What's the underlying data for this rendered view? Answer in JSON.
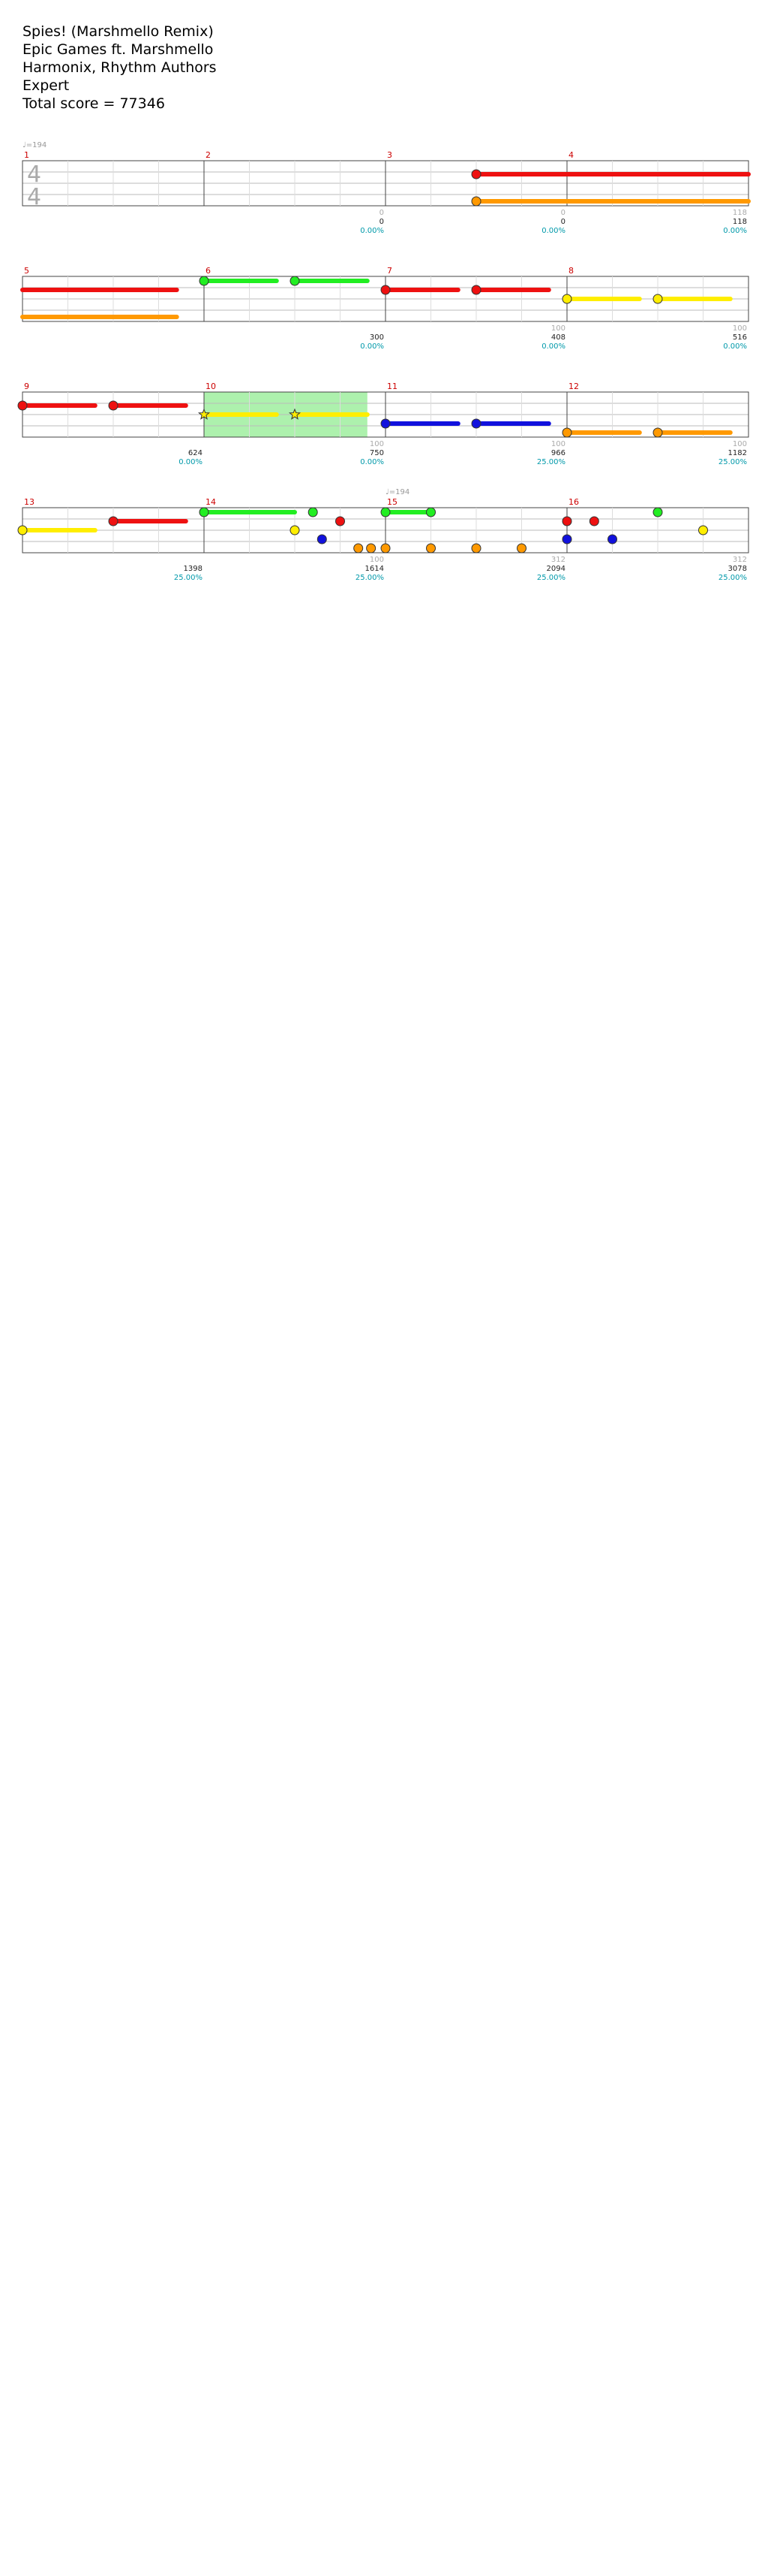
{
  "song": {
    "title": "Spies! (Marshmello Remix)",
    "artist": "Epic Games ft. Marshmello",
    "charter": "Harmonix, Rhythm Authors",
    "difficulty": "Expert",
    "total_score": "Total score = 77346"
  },
  "time_signature": {
    "top": "4",
    "bottom": "4"
  },
  "colors": {
    "green": "#22ee22",
    "red": "#ee1111",
    "yellow": "#ffee00",
    "blue": "#1111dd",
    "orange": "#ff9900",
    "sp": "#33dd33",
    "solo": "#3333ee",
    "stat_teal": "#0099aa"
  },
  "legend_lanes": [
    "green",
    "red",
    "yellow",
    "blue",
    "orange"
  ],
  "rows": [
    {
      "bpm": [
        {
          "m": 0,
          "label": "♩=194"
        }
      ],
      "measures": [
        {
          "n": "1",
          "s": [
            "",
            "",
            "",
            ""
          ],
          "sp": [],
          "solo": [],
          "sust": [],
          "notes": []
        },
        {
          "n": "2",
          "s": [
            "0",
            "0",
            "0.00%",
            ""
          ],
          "sp": [],
          "solo": [],
          "sust": [],
          "notes": []
        },
        {
          "n": "3",
          "s": [
            "0",
            "0",
            "0.00%",
            ""
          ],
          "sp": [],
          "solo": [],
          "sust": [],
          "notes": [
            [
              0.5,
              "red"
            ],
            [
              0.5,
              "orange"
            ]
          ],
          "susts": [
            [
              0.5,
              1,
              "red"
            ],
            [
              0.5,
              1,
              "orange"
            ]
          ]
        },
        {
          "n": "4",
          "s": [
            "118",
            "118",
            "0.00%",
            ""
          ],
          "sp": [],
          "solo": [],
          "sust": [
            [
              0,
              1,
              "red"
            ],
            [
              0,
              1,
              "orange"
            ]
          ],
          "notes": []
        }
      ]
    },
    {
      "bpm": [],
      "measures": [
        {
          "n": "5",
          "s": [
            "",
            "",
            "",
            ""
          ],
          "sp": [],
          "solo": [],
          "sust": [
            [
              0,
              0.85,
              "red"
            ],
            [
              0,
              0.85,
              "orange"
            ]
          ],
          "notes": []
        },
        {
          "n": "6",
          "s": [
            "",
            "300",
            "0.00%",
            ""
          ],
          "sp": [],
          "solo": [],
          "sust": [
            [
              0,
              0.4,
              "green"
            ],
            [
              0.5,
              0.9,
              "green"
            ]
          ],
          "notes": [
            [
              0,
              "green"
            ],
            [
              0.5,
              "green"
            ]
          ]
        },
        {
          "n": "7",
          "s": [
            "100",
            "408",
            "0.00%",
            ""
          ],
          "sp": [],
          "solo": [],
          "sust": [
            [
              0,
              0.4,
              "red"
            ],
            [
              0.5,
              0.9,
              "red"
            ]
          ],
          "notes": [
            [
              0,
              "red"
            ],
            [
              0.5,
              "red"
            ]
          ]
        },
        {
          "n": "8",
          "s": [
            "100",
            "516",
            "0.00%",
            ""
          ],
          "sp": [],
          "solo": [],
          "sust": [
            [
              0,
              0.4,
              "yellow"
            ],
            [
              0.5,
              0.9,
              "yellow"
            ]
          ],
          "notes": [
            [
              0,
              "yellow"
            ],
            [
              0.5,
              "yellow"
            ]
          ]
        }
      ]
    },
    {
      "bpm": [],
      "measures": [
        {
          "n": "9",
          "s": [
            "",
            "624",
            "0.00%",
            ""
          ],
          "sp": [],
          "solo": [],
          "sust": [
            [
              0,
              0.4,
              "red"
            ],
            [
              0.5,
              0.9,
              "red"
            ]
          ],
          "notes": [
            [
              0,
              "red"
            ],
            [
              0.5,
              "red"
            ]
          ]
        },
        {
          "n": "10",
          "s": [
            "100",
            "750",
            "0.00%",
            ""
          ],
          "sp": [
            [
              0,
              0.9
            ]
          ],
          "solo": [],
          "sust": [
            [
              0,
              0.4,
              "yellow"
            ],
            [
              0.5,
              0.9,
              "yellow"
            ]
          ],
          "notes": [
            [
              0,
              "yellow",
              "star"
            ],
            [
              0.5,
              "yellow",
              "star"
            ]
          ]
        },
        {
          "n": "11",
          "s": [
            "100",
            "966",
            "25.00%",
            ""
          ],
          "sp": [],
          "solo": [],
          "sust": [
            [
              0,
              0.4,
              "blue"
            ],
            [
              0.5,
              0.9,
              "blue"
            ]
          ],
          "notes": [
            [
              0,
              "blue"
            ],
            [
              0.5,
              "blue"
            ]
          ]
        },
        {
          "n": "12",
          "s": [
            "100",
            "1182",
            "25.00%",
            ""
          ],
          "sp": [],
          "solo": [],
          "sust": [
            [
              0,
              0.4,
              "orange"
            ],
            [
              0.5,
              0.9,
              "orange"
            ]
          ],
          "notes": [
            [
              0,
              "orange"
            ],
            [
              0.5,
              "orange"
            ]
          ]
        }
      ]
    },
    {
      "bpm": [
        {
          "m": 2,
          "label": "♩=194"
        }
      ],
      "measures": [
        {
          "n": "13",
          "s": [
            "",
            "1398",
            "25.00%",
            ""
          ],
          "sp": [],
          "solo": [],
          "sust": [
            [
              0,
              0.4,
              "yellow"
            ],
            [
              0.5,
              0.9,
              "red"
            ]
          ],
          "notes": [
            [
              0,
              "yellow"
            ],
            [
              0.5,
              "red"
            ]
          ]
        },
        {
          "n": "14",
          "s": [
            "100",
            "1614",
            "25.00%",
            ""
          ],
          "sp": [],
          "solo": [],
          "sust": [
            [
              0,
              0.5,
              "green"
            ]
          ],
          "notes": [
            [
              0,
              "green"
            ],
            [
              0.6,
              "green"
            ],
            [
              0.75,
              "red"
            ],
            [
              0.5,
              "yellow"
            ],
            [
              0.65,
              "blue"
            ],
            [
              0.85,
              "orange"
            ],
            [
              0.92,
              "orange"
            ]
          ]
        },
        {
          "n": "15",
          "s": [
            "312",
            "2094",
            "25.00%",
            ""
          ],
          "sp": [],
          "solo": [],
          "sust": [
            [
              0,
              0.25,
              "green"
            ]
          ],
          "notes": [
            [
              0,
              "green"
            ],
            [
              0.25,
              "green"
            ],
            [
              0,
              "orange"
            ],
            [
              0.25,
              "orange"
            ],
            [
              0.5,
              "orange"
            ],
            [
              0.75,
              "orange"
            ]
          ]
        },
        {
          "n": "16",
          "s": [
            "312",
            "3078",
            "25.00%",
            ""
          ],
          "sp": [],
          "solo": [],
          "sust": [],
          "notes": [
            [
              0,
              "red"
            ],
            [
              0.15,
              "red"
            ],
            [
              0,
              "blue"
            ],
            [
              0.25,
              "blue"
            ],
            [
              0.5,
              "green"
            ],
            [
              0.75,
              "yellow"
            ]
          ]
        }
      ]
    }
  ]
}
